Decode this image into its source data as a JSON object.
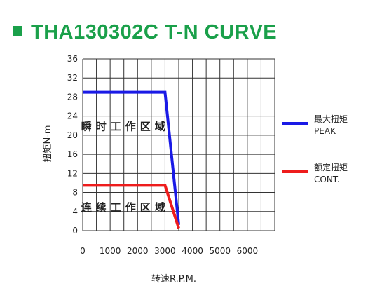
{
  "title": "THA130302C T-N CURVE",
  "chart_data": {
    "type": "line",
    "xlabel": "转速R.P.M.",
    "ylabel": "扭矩N-m",
    "x_ticks": [
      0,
      1000,
      2000,
      3000,
      4000,
      5000,
      6000
    ],
    "y_ticks": [
      0,
      4,
      8,
      12,
      16,
      20,
      24,
      28,
      32,
      36
    ],
    "xlim": [
      0,
      7000
    ],
    "ylim": [
      0,
      36
    ],
    "grid": true,
    "legend_position": "right",
    "series": [
      {
        "name": "最大扭矩",
        "name2": "PEAK",
        "color": "#1a1ae6",
        "points": [
          [
            0,
            29
          ],
          [
            3000,
            29
          ],
          [
            3500,
            1.2
          ]
        ]
      },
      {
        "name": "额定扭矩",
        "name2": "CONT.",
        "color": "#ee1c1c",
        "points": [
          [
            0,
            9.5
          ],
          [
            3000,
            9.5
          ],
          [
            3500,
            0.5
          ]
        ]
      }
    ],
    "annotations": [
      {
        "text": "瞬时工作区域",
        "x": 1500,
        "y": 22
      },
      {
        "text": "连续工作区域",
        "x": 1500,
        "y": 5
      }
    ]
  }
}
